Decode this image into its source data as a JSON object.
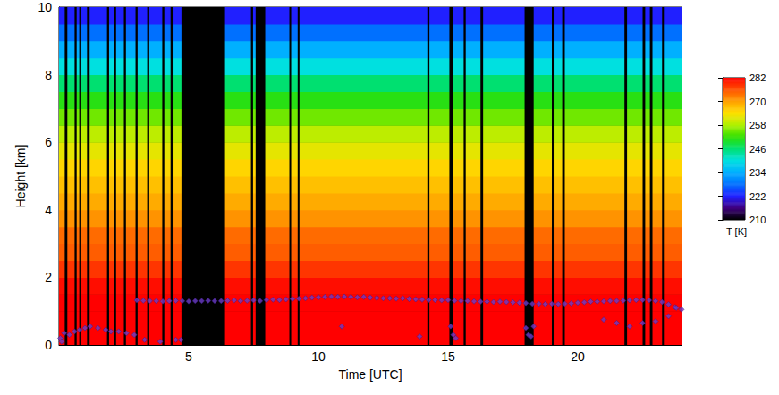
{
  "chart_data": {
    "type": "heatmap",
    "x_label": "Time [UTC]",
    "y_label": "Height [km]",
    "xlim": [
      0,
      24
    ],
    "xticks": [
      5,
      10,
      15,
      20
    ],
    "ylim": [
      0,
      10
    ],
    "yticks": [
      0,
      2,
      4,
      6,
      8,
      10
    ],
    "grid": false,
    "heights": [
      0.25,
      0.75,
      1.25,
      1.75,
      2.25,
      2.75,
      3.25,
      3.75,
      4.25,
      4.75,
      5.25,
      5.75,
      6.25,
      6.75,
      7.25,
      7.75,
      8.25,
      8.75,
      9.25,
      9.75
    ],
    "temperature": [
      282,
      282,
      282,
      281,
      278,
      275,
      274,
      271,
      269,
      267,
      265,
      262,
      259,
      255,
      251,
      246,
      240,
      234,
      228,
      222
    ],
    "gaps": [
      [
        0.22,
        0.32
      ],
      [
        0.6,
        0.68
      ],
      [
        0.78,
        0.86
      ],
      [
        1.08,
        1.18
      ],
      [
        1.85,
        1.93
      ],
      [
        2.12,
        2.2
      ],
      [
        2.5,
        2.58
      ],
      [
        2.95,
        3.03
      ],
      [
        3.4,
        3.48
      ],
      [
        3.98,
        4.06
      ],
      [
        4.3,
        4.38
      ],
      [
        4.72,
        6.4
      ],
      [
        7.4,
        7.48
      ],
      [
        7.58,
        7.95
      ],
      [
        8.88,
        8.95
      ],
      [
        9.2,
        9.27
      ],
      [
        14.2,
        14.28
      ],
      [
        15.05,
        15.2
      ],
      [
        15.6,
        15.68
      ],
      [
        16.25,
        16.35
      ],
      [
        17.95,
        18.3
      ],
      [
        19.0,
        19.07
      ],
      [
        19.4,
        19.5
      ],
      [
        21.8,
        21.9
      ],
      [
        22.5,
        22.6
      ],
      [
        22.78,
        22.88
      ],
      [
        23.25,
        23.32
      ]
    ],
    "colorbar": {
      "label": "T [K]",
      "range": [
        210,
        282
      ],
      "ticks": [
        210,
        222,
        234,
        246,
        258,
        270,
        282
      ]
    },
    "series": [
      {
        "type": "scatter",
        "marker": "diamond",
        "color": "#6a3cc8",
        "values": [
          [
            0.05,
            0.2
          ],
          [
            0.1,
            0.1
          ],
          [
            0.2,
            0.35
          ],
          [
            0.4,
            0.3
          ],
          [
            0.6,
            0.4
          ],
          [
            0.8,
            0.45
          ],
          [
            1.0,
            0.5
          ],
          [
            1.2,
            0.55
          ],
          [
            1.5,
            0.5
          ],
          [
            1.8,
            0.45
          ],
          [
            2.0,
            0.4
          ],
          [
            2.3,
            0.4
          ],
          [
            2.6,
            0.35
          ],
          [
            2.9,
            0.3
          ],
          [
            3.3,
            0.15
          ],
          [
            3.9,
            0.1
          ],
          [
            4.5,
            0.15
          ],
          [
            4.7,
            0.15
          ],
          [
            3.0,
            1.32
          ],
          [
            3.25,
            1.31
          ],
          [
            3.5,
            1.3
          ],
          [
            3.75,
            1.3
          ],
          [
            4.0,
            1.29
          ],
          [
            4.25,
            1.3
          ],
          [
            4.5,
            1.31
          ],
          [
            4.75,
            1.3
          ],
          [
            5.0,
            1.29
          ],
          [
            5.25,
            1.3
          ],
          [
            5.5,
            1.3
          ],
          [
            5.75,
            1.31
          ],
          [
            6.0,
            1.3
          ],
          [
            6.25,
            1.3
          ],
          [
            6.5,
            1.31
          ],
          [
            6.75,
            1.32
          ],
          [
            7.0,
            1.3
          ],
          [
            7.25,
            1.31
          ],
          [
            7.5,
            1.32
          ],
          [
            7.75,
            1.3
          ],
          [
            8.0,
            1.33
          ],
          [
            8.25,
            1.34
          ],
          [
            8.5,
            1.33
          ],
          [
            8.75,
            1.35
          ],
          [
            9.0,
            1.36
          ],
          [
            9.25,
            1.37
          ],
          [
            9.5,
            1.38
          ],
          [
            9.75,
            1.4
          ],
          [
            10.0,
            1.41
          ],
          [
            10.25,
            1.42
          ],
          [
            10.5,
            1.43
          ],
          [
            10.75,
            1.42
          ],
          [
            11.0,
            1.43
          ],
          [
            11.25,
            1.42
          ],
          [
            11.5,
            1.41
          ],
          [
            11.75,
            1.42
          ],
          [
            12.0,
            1.4
          ],
          [
            12.25,
            1.39
          ],
          [
            12.5,
            1.38
          ],
          [
            12.75,
            1.38
          ],
          [
            13.0,
            1.37
          ],
          [
            13.25,
            1.38
          ],
          [
            13.5,
            1.36
          ],
          [
            13.75,
            1.35
          ],
          [
            14.0,
            1.34
          ],
          [
            14.25,
            1.33
          ],
          [
            14.5,
            1.33
          ],
          [
            14.75,
            1.32
          ],
          [
            15.0,
            1.33
          ],
          [
            15.25,
            1.31
          ],
          [
            15.5,
            1.3
          ],
          [
            15.75,
            1.3
          ],
          [
            16.0,
            1.29
          ],
          [
            16.25,
            1.28
          ],
          [
            16.5,
            1.28
          ],
          [
            16.75,
            1.27
          ],
          [
            17.0,
            1.28
          ],
          [
            17.25,
            1.27
          ],
          [
            17.5,
            1.26
          ],
          [
            17.75,
            1.25
          ],
          [
            18.0,
            1.24
          ],
          [
            18.25,
            1.22
          ],
          [
            18.5,
            1.22
          ],
          [
            18.75,
            1.21
          ],
          [
            19.0,
            1.22
          ],
          [
            19.25,
            1.21
          ],
          [
            19.5,
            1.22
          ],
          [
            19.75,
            1.23
          ],
          [
            20.0,
            1.25
          ],
          [
            20.25,
            1.26
          ],
          [
            20.5,
            1.28
          ],
          [
            20.75,
            1.28
          ],
          [
            21.0,
            1.29
          ],
          [
            21.25,
            1.3
          ],
          [
            21.5,
            1.3
          ],
          [
            21.75,
            1.31
          ],
          [
            22.0,
            1.32
          ],
          [
            22.25,
            1.33
          ],
          [
            22.5,
            1.33
          ],
          [
            22.75,
            1.32
          ],
          [
            23.0,
            1.3
          ],
          [
            23.25,
            1.27
          ],
          [
            23.5,
            1.2
          ],
          [
            23.75,
            1.12
          ],
          [
            24.0,
            1.05
          ],
          [
            10.9,
            0.55
          ],
          [
            13.9,
            0.25
          ],
          [
            15.1,
            0.55
          ],
          [
            15.2,
            0.3
          ],
          [
            15.3,
            0.2
          ],
          [
            18.0,
            0.5
          ],
          [
            18.1,
            0.3
          ],
          [
            18.2,
            0.25
          ],
          [
            18.3,
            0.55
          ],
          [
            21.0,
            0.75
          ],
          [
            21.5,
            0.65
          ],
          [
            22.0,
            0.55
          ],
          [
            22.5,
            0.65
          ],
          [
            23.0,
            0.7
          ],
          [
            23.5,
            0.85
          ],
          [
            23.8,
            1.1
          ]
        ]
      }
    ]
  }
}
